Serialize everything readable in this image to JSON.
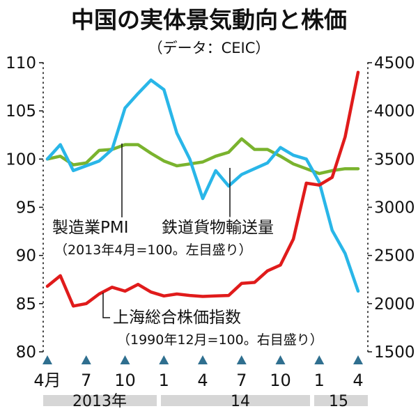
{
  "title": "中国の実体景気動向と株価",
  "source": "（データ：CEIC）",
  "chart_data": {
    "type": "line",
    "x": [
      "2013-04",
      "2013-05",
      "2013-06",
      "2013-07",
      "2013-08",
      "2013-09",
      "2013-10",
      "2013-11",
      "2013-12",
      "2014-01",
      "2014-02",
      "2014-03",
      "2014-04",
      "2014-05",
      "2014-06",
      "2014-07",
      "2014-08",
      "2014-09",
      "2014-10",
      "2014-11",
      "2014-12",
      "2015-01",
      "2015-02",
      "2015-03",
      "2015-04"
    ],
    "x_tick_labels": [
      "4月",
      "7",
      "10",
      "1",
      "4",
      "7",
      "10",
      "1",
      "4"
    ],
    "x_year_labels": [
      "2013年",
      "14",
      "15"
    ],
    "y_left": {
      "range": [
        80,
        110
      ],
      "ticks": [
        "80",
        "85",
        "90",
        "95",
        "100",
        "105",
        "110"
      ]
    },
    "y_right": {
      "range": [
        1500,
        4500
      ],
      "ticks": [
        "1500",
        "2000",
        "2500",
        "3000",
        "3500",
        "4000",
        "4500"
      ]
    },
    "grid": false,
    "series": [
      {
        "name": "製造業PMI",
        "axis": "left",
        "color": "#7ab32e",
        "values": [
          100.0,
          100.3,
          99.4,
          99.6,
          100.9,
          101.0,
          101.5,
          101.5,
          100.6,
          99.8,
          99.3,
          99.5,
          99.7,
          100.3,
          100.7,
          102.1,
          101.0,
          101.0,
          100.3,
          99.5,
          99.0,
          98.5,
          98.8,
          99.0,
          99.0
        ]
      },
      {
        "name": "鉄道貨物輸送量",
        "axis": "left",
        "color": "#29b6e8",
        "values": [
          100.0,
          101.5,
          98.8,
          99.3,
          99.8,
          101.0,
          105.3,
          106.8,
          108.2,
          107.2,
          102.7,
          100.0,
          95.9,
          98.8,
          97.2,
          98.4,
          99.0,
          99.6,
          101.2,
          100.4,
          100.0,
          97.6,
          92.6,
          90.2,
          86.3
        ]
      },
      {
        "name": "上海総合株価指数",
        "axis": "right",
        "color": "#e01b1b",
        "values": [
          2180,
          2290,
          1975,
          2000,
          2100,
          2170,
          2130,
          2200,
          2120,
          2080,
          2100,
          2085,
          2075,
          2080,
          2085,
          2210,
          2220,
          2340,
          2400,
          2670,
          3250,
          3230,
          3310,
          3730,
          4400
        ]
      }
    ],
    "annotations": {
      "pmi_label": "製造業PMI",
      "rail_label": "鉄道貨物輸送量",
      "left_note": "（2013年4月=100。左目盛り）",
      "stock_label": "上海総合株価指数",
      "right_note": "（1990年12月=100。右目盛り）"
    }
  }
}
